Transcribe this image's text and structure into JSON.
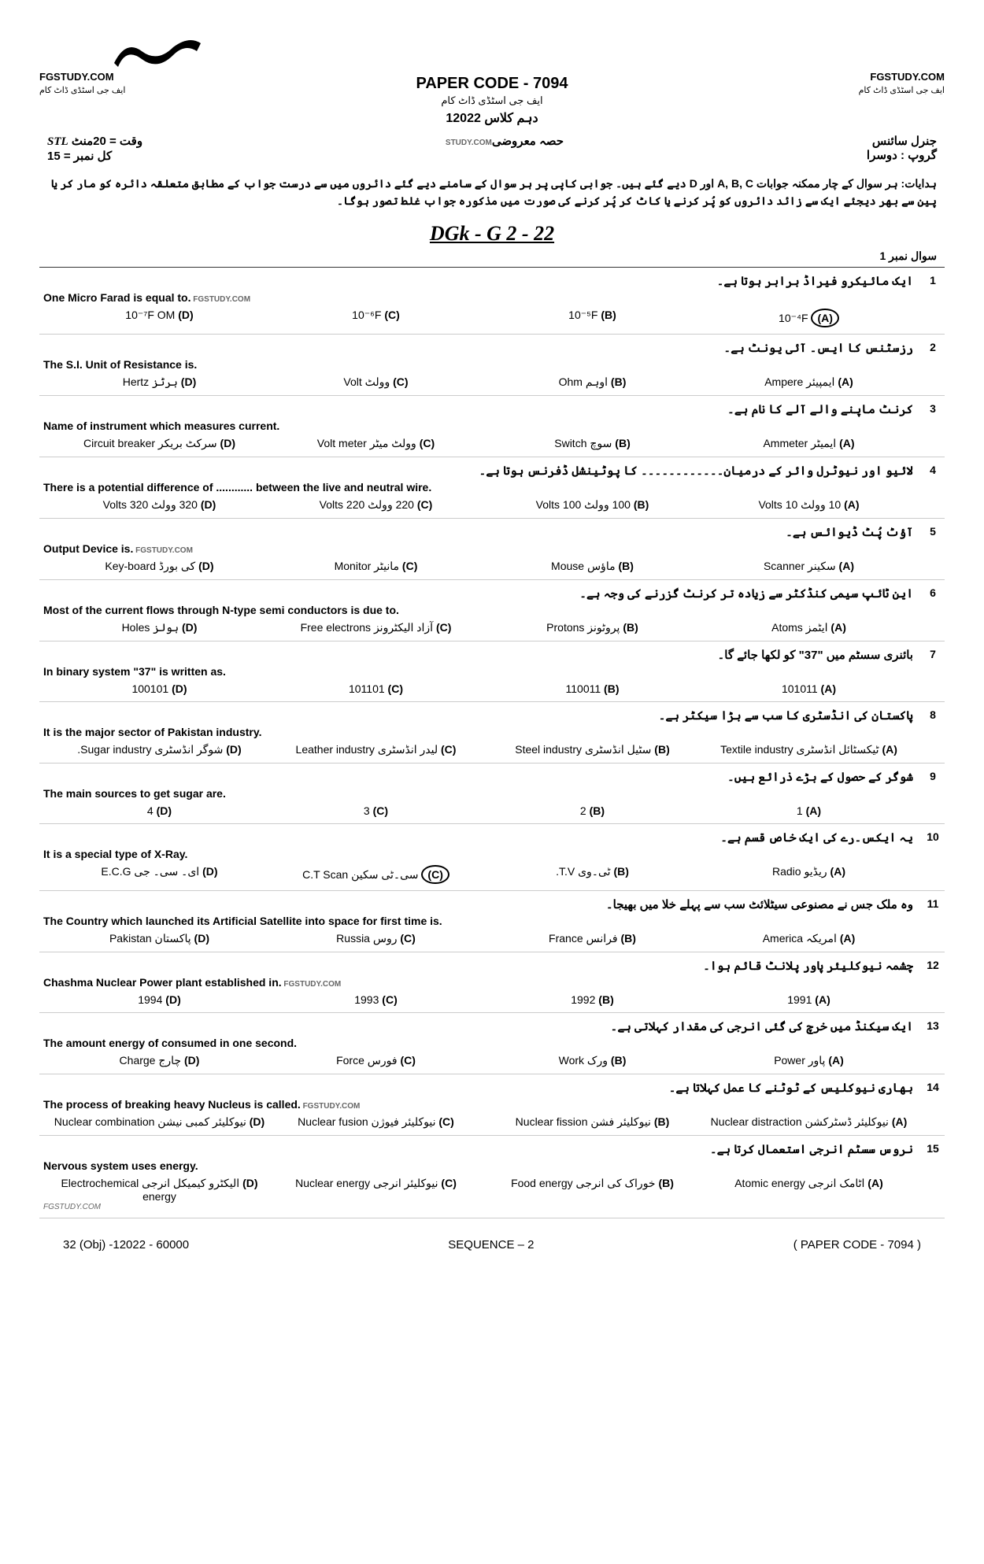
{
  "header": {
    "watermark_left": "FGSTUDY.COM",
    "watermark_left_sub": "ایف جی اسٹڈی ڈاٹ کام",
    "watermark_right": "FGSTUDY.COM",
    "watermark_right_sub": "ایف جی اسٹڈی ڈاٹ کام",
    "paper_code": "PAPER CODE - 7094",
    "paper_sub": "ایف جی اسٹڈی ڈاٹ کام",
    "class_line": "دہم کلاس   12022",
    "subject": "جنرل سائنس",
    "group": "گروپ : دوسرا",
    "section": "حصہ معروضی",
    "study_wm": "STUDY.COM",
    "time": "وقت = 20منٹ",
    "stl": "STL",
    "total": "کل نمبر = 15"
  },
  "instructions": "ہدایات: ہر سوال کے چار ممکنہ جوابات A, B, C اور D دیے گئے ہیں۔ جوابی کاپی پر ہر سوال کے سامنے دیے گئے دائروں میں سے درست جواب کے مطابق متعلقہ دائرہ کو مار کر یا پین سے بھر دیجئے ایک سے زائد دائروں کو پُر کرنے یا کاٹ کر پُر کرنے کی صورت میں مذکورہ جواب غلط تصور ہوگا۔",
  "handwritten": "DGk - G 2 - 22",
  "question_header": "سوال نمبر 1",
  "questions": [
    {
      "num": "1",
      "urdu": "ایک مائیکرو فیراڈ برابر ہوتا ہے۔",
      "english": "One Micro Farad is equal to.",
      "wm": "FGSTUDY.COM",
      "options": [
        {
          "label": "(A)",
          "text": "10⁻⁴F",
          "circled": true
        },
        {
          "label": "(B)",
          "text": "10⁻⁵F"
        },
        {
          "label": "(C)",
          "text": "10⁻⁶F"
        },
        {
          "label": "(D)",
          "text": "10⁻⁷F OM"
        }
      ]
    },
    {
      "num": "2",
      "urdu": "رزسٹنس کا ایس۔ آئی یونٹ ہے۔",
      "english": "The S.I. Unit of Resistance is.",
      "options": [
        {
          "label": "(A)",
          "text": "ایمپیئر Ampere"
        },
        {
          "label": "(B)",
          "text": "اوہم Ohm"
        },
        {
          "label": "(C)",
          "text": "وولٹ Volt"
        },
        {
          "label": "(D)",
          "text": "ہرٹز Hertz"
        }
      ]
    },
    {
      "num": "3",
      "urdu": "کرنٹ ماپنے والے آلے کا نام ہے۔",
      "english": "Name of instrument which measures current.",
      "options": [
        {
          "label": "(A)",
          "text": "ایمیٹر Ammeter"
        },
        {
          "label": "(B)",
          "text": "سوچ Switch"
        },
        {
          "label": "(C)",
          "text": "وولٹ میٹر Volt meter"
        },
        {
          "label": "(D)",
          "text": "سرکٹ بریکر Circuit breaker"
        }
      ]
    },
    {
      "num": "4",
      "urdu": "لائیو اور نیوٹرل وائر کے درمیان۔۔۔۔۔۔۔۔۔۔۔۔ کا پوٹینشل ڈفرنس ہوتا ہے۔",
      "english": "There is a potential difference of ............ between the live and neutral wire.",
      "options": [
        {
          "label": "(A)",
          "text": "10 وولٹ 10 Volts"
        },
        {
          "label": "(B)",
          "text": "100 وولٹ 100 Volts"
        },
        {
          "label": "(C)",
          "text": "220 وولٹ 220 Volts"
        },
        {
          "label": "(D)",
          "text": "320 وولٹ 320 Volts"
        }
      ]
    },
    {
      "num": "5",
      "urdu": "آؤٹ پُٹ ڈیوائس ہے۔",
      "english": "Output Device is.",
      "wm": "FGSTUDY.COM",
      "options": [
        {
          "label": "(A)",
          "text": "سکینر Scanner"
        },
        {
          "label": "(B)",
          "text": "ماؤس Mouse"
        },
        {
          "label": "(C)",
          "text": "مانیٹر Monitor"
        },
        {
          "label": "(D)",
          "text": "کی بورڈ Key-board"
        }
      ]
    },
    {
      "num": "6",
      "urdu": "این ٹائپ سیمی کنڈکٹر سے زیادہ تر کرنٹ گزرنے کی وجہ ہے۔",
      "english": "Most of the current flows through N-type semi conductors is due to.",
      "options": [
        {
          "label": "(A)",
          "text": "ایٹمز Atoms"
        },
        {
          "label": "(B)",
          "text": "پروٹونز Protons"
        },
        {
          "label": "(C)",
          "text": "آزاد الیکٹرونز Free electrons"
        },
        {
          "label": "(D)",
          "text": "ہولز Holes"
        }
      ]
    },
    {
      "num": "7",
      "urdu": "بائنری سسٹم میں \"37\" کو لکھا جائے گا۔",
      "english": "In binary system \"37\" is written as.",
      "options": [
        {
          "label": "(A)",
          "text": "101011"
        },
        {
          "label": "(B)",
          "text": "110011"
        },
        {
          "label": "(C)",
          "text": "101101"
        },
        {
          "label": "(D)",
          "text": "100101"
        }
      ]
    },
    {
      "num": "8",
      "urdu": "پاکستان کی انڈسٹری کا سب سے بڑا سیکٹر ہے۔",
      "english": "It is the major sector of Pakistan industry.",
      "options": [
        {
          "label": "(A)",
          "text": "ٹیکسٹائل انڈسٹری Textile industry"
        },
        {
          "label": "(B)",
          "text": "سٹیل انڈسٹری Steel industry"
        },
        {
          "label": "(C)",
          "text": "لیدر انڈسٹری Leather industry"
        },
        {
          "label": "(D)",
          "text": "شوگر انڈسٹری Sugar industry."
        }
      ]
    },
    {
      "num": "9",
      "urdu": "شوگر کے حصول کے بڑے ذرائع ہیں۔",
      "english": "The main sources to get sugar are.",
      "options": [
        {
          "label": "(A)",
          "text": "1"
        },
        {
          "label": "(B)",
          "text": "2"
        },
        {
          "label": "(C)",
          "text": "3"
        },
        {
          "label": "(D)",
          "text": "4"
        }
      ]
    },
    {
      "num": "10",
      "urdu": "یہ ایکس۔رے کی ایک خاص قسم ہے۔",
      "english": "It is a special type of X-Ray.",
      "options": [
        {
          "label": "(A)",
          "text": "ریڈیو Radio"
        },
        {
          "label": "(B)",
          "text": "ٹی۔وی T.V."
        },
        {
          "label": "(C)",
          "text": "سی۔ٹی سکین C.T Scan",
          "circled": true
        },
        {
          "label": "(D)",
          "text": "ای۔ سی۔ جی E.C.G"
        }
      ]
    },
    {
      "num": "11",
      "urdu": "وہ ملک جس نے مصنوعی سیٹلائٹ سب سے پہلے خلا میں بھیجا۔",
      "english": "The Country which launched its Artificial Satellite into space for first time is.",
      "options": [
        {
          "label": "(A)",
          "text": "امریکہ America"
        },
        {
          "label": "(B)",
          "text": "فرانس France"
        },
        {
          "label": "(C)",
          "text": "روس Russia"
        },
        {
          "label": "(D)",
          "text": "پاکستان Pakistan"
        }
      ]
    },
    {
      "num": "12",
      "urdu": "چشمہ نیوکلیئر پاور پلانٹ قائم ہوا۔",
      "english": "Chashma Nuclear Power plant established in.",
      "wm": "FGSTUDY.COM",
      "options": [
        {
          "label": "(A)",
          "text": "1991"
        },
        {
          "label": "(B)",
          "text": "1992"
        },
        {
          "label": "(C)",
          "text": "1993"
        },
        {
          "label": "(D)",
          "text": "1994"
        }
      ]
    },
    {
      "num": "13",
      "urdu": "ایک سیکنڈ میں خرچ کی گئی انرجی کی مقدار کہلاتی ہے۔",
      "english": "The amount energy of consumed in one second.",
      "options": [
        {
          "label": "(A)",
          "text": "پاور Power"
        },
        {
          "label": "(B)",
          "text": "ورک Work"
        },
        {
          "label": "(C)",
          "text": "فورس Force"
        },
        {
          "label": "(D)",
          "text": "چارج Charge"
        }
      ]
    },
    {
      "num": "14",
      "urdu": "بھاری نیوکلیس کے ٹوٹنے کا عمل کہلاتا ہے۔",
      "english": "The process of breaking heavy Nucleus is called.",
      "wm": "FGSTUDY.COM",
      "options": [
        {
          "label": "(A)",
          "text": "نیوکلیئر ڈسٹرکشن Nuclear distraction"
        },
        {
          "label": "(B)",
          "text": "نیوکلیئر فشن Nuclear fission"
        },
        {
          "label": "(C)",
          "text": "نیوکلیئر فیوژن Nuclear fusion"
        },
        {
          "label": "(D)",
          "text": "نیوکلیئر کمبی نیشن Nuclear combination"
        }
      ]
    },
    {
      "num": "15",
      "urdu": "نروس سسٹم انرجی استعمال کرتا ہے۔",
      "english": "Nervous system uses energy.",
      "wm2": "FGSTUDY.COM",
      "options": [
        {
          "label": "(A)",
          "text": "اٹامک انرجی Atomic energy"
        },
        {
          "label": "(B)",
          "text": "خوراک کی انرجی Food energy"
        },
        {
          "label": "(C)",
          "text": "نیوکلیئر انرجی Nuclear energy"
        },
        {
          "label": "(D)",
          "text": "الیکٹرو کیمیکل انرجی Electrochemical energy"
        }
      ]
    }
  ],
  "footer": {
    "left": "32 (Obj) -12022 - 60000",
    "center": "SEQUENCE – 2",
    "right": "( PAPER CODE - 7094 )"
  }
}
